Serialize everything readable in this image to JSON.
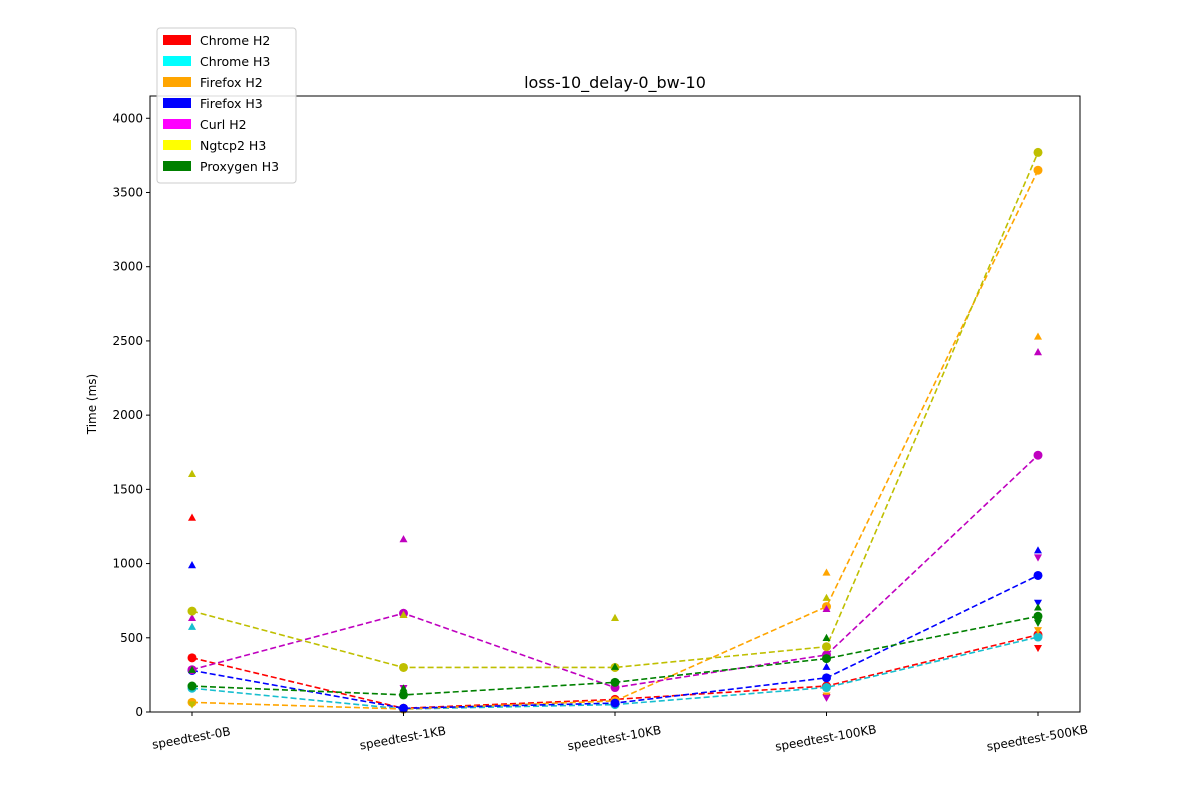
{
  "chart_data": {
    "type": "line",
    "title": "loss-10_delay-0_bw-10",
    "xlabel": "",
    "ylabel": "Time (ms)",
    "ylim": [
      0,
      4150
    ],
    "yticks": [
      0,
      500,
      1000,
      1500,
      2000,
      2500,
      3000,
      3500,
      4000
    ],
    "categories": [
      "speedtest-0B",
      "speedtest-1KB",
      "speedtest-10KB",
      "speedtest-100KB",
      "speedtest-500KB"
    ],
    "legend_placement": "top-left",
    "grid": false,
    "series": [
      {
        "name": "Chrome H2",
        "legend_color": "#ff0000",
        "color": "#ff0000",
        "mean": [
          365,
          25,
          85,
          175,
          520
        ],
        "max": [
          1310,
          null,
          null,
          null,
          null
        ],
        "min": [
          null,
          null,
          null,
          100,
          430
        ]
      },
      {
        "name": "Chrome H3",
        "legend_color": "#00ffff",
        "color": "#17becf",
        "mean": [
          160,
          20,
          50,
          165,
          505
        ],
        "max": [
          575,
          null,
          null,
          null,
          null
        ],
        "min": [
          null,
          null,
          null,
          null,
          null
        ]
      },
      {
        "name": "Firefox H2",
        "legend_color": "#ffa500",
        "color": "#ffa500",
        "mean": [
          65,
          20,
          75,
          710,
          3650
        ],
        "max": [
          null,
          655,
          null,
          940,
          2530
        ],
        "min": [
          null,
          null,
          null,
          110,
          550
        ]
      },
      {
        "name": "Firefox H3",
        "legend_color": "#0000ff",
        "color": "#0000ff",
        "mean": [
          280,
          25,
          60,
          230,
          920
        ],
        "max": [
          990,
          null,
          null,
          305,
          1090
        ],
        "min": [
          null,
          null,
          null,
          null,
          735
        ]
      },
      {
        "name": "Curl H2",
        "legend_color": "#ff00ff",
        "color": "#bf00bf",
        "mean": [
          285,
          665,
          165,
          385,
          1730
        ],
        "max": [
          635,
          1165,
          null,
          695,
          2425
        ],
        "min": [
          null,
          160,
          null,
          95,
          1040
        ]
      },
      {
        "name": "Ngtcp2 H3",
        "legend_color": "#ffff00",
        "color": "#bfbf00",
        "mean": [
          680,
          300,
          300,
          440,
          3770
        ],
        "max": [
          1605,
          655,
          635,
          770,
          null
        ],
        "min": [
          50,
          null,
          null,
          null,
          null
        ]
      },
      {
        "name": "Proxygen H3",
        "legend_color": "#008000",
        "color": "#008000",
        "mean": [
          175,
          115,
          200,
          360,
          645
        ],
        "max": [
          285,
          160,
          305,
          500,
          705
        ],
        "min": [
          null,
          null,
          null,
          null,
          600
        ]
      }
    ]
  }
}
